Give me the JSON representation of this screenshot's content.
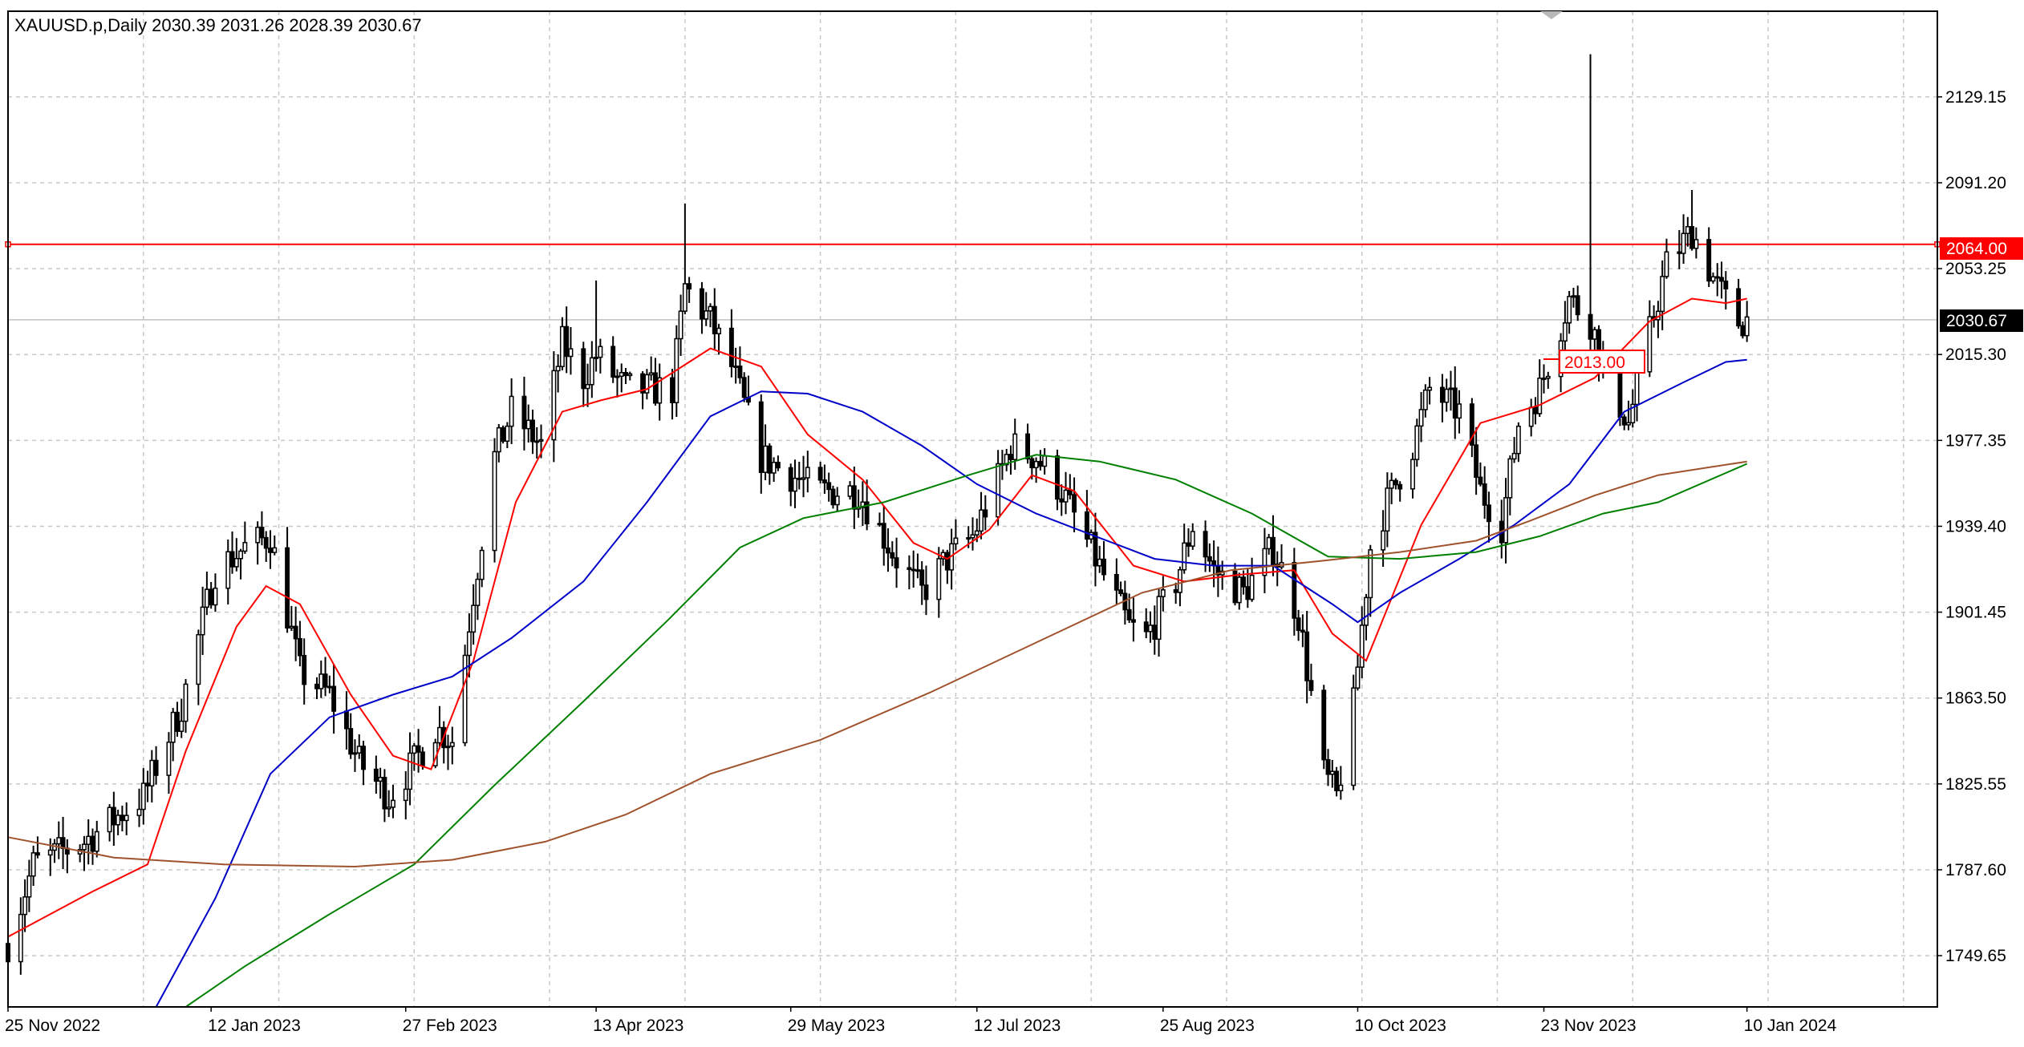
{
  "chart_data": {
    "type": "candlestick",
    "title": "XAUUSD.p,Daily  2030.39 2031.26 2028.39 2030.67",
    "symbol": "XAUUSD.p",
    "timeframe": "Daily",
    "ohlc_last": {
      "open": 2030.39,
      "high": 2031.26,
      "low": 2028.39,
      "close": 2030.67
    },
    "x_ticks": [
      "25 Nov 2022",
      "12 Jan 2023",
      "27 Feb 2023",
      "13 Apr 2023",
      "29 May 2023",
      "12 Jul 2023",
      "25 Aug 2023",
      "10 Oct 2023",
      "23 Nov 2023",
      "10 Jan 2024"
    ],
    "y_ticks": [
      1749.65,
      1787.6,
      1825.55,
      1863.5,
      1901.45,
      1939.4,
      1977.35,
      2015.3,
      2053.25,
      2091.2,
      2129.15
    ],
    "y_tick_labels": [
      "1749.65",
      "1787.60",
      "1825.55",
      "1863.50",
      "1901.45",
      "1939.40",
      "1977.35",
      "2015.30",
      "2053.25",
      "2091.20",
      "2129.15"
    ],
    "ylim": [
      1727,
      2167
    ],
    "x_range_days": [
      "2022-11-25",
      "2024-02-24"
    ],
    "grid": true,
    "price_labels": {
      "current": "2030.67",
      "level": "2064.00",
      "ma_value": "2013.00"
    },
    "horizontal_levels": [
      {
        "label": "2064.00",
        "value": 2064.0,
        "color": "#ff0000"
      },
      {
        "label": "2030.67",
        "value": 2030.67,
        "color": "#c0c0c0"
      }
    ],
    "colors": {
      "candle": "#000000",
      "ma_red": "#ff0000",
      "ma_blue": "#0000c8",
      "ma_green": "#008000",
      "ma_brown": "#a0522d",
      "level": "#ff0000",
      "current_price_bg": "#000000",
      "grid": "#c8c8c8"
    },
    "candle_anchors": [
      [
        "2022-11-25",
        1755
      ],
      [
        "2022-12-01",
        1790
      ],
      [
        "2022-12-13",
        1800
      ],
      [
        "2022-12-27",
        1820
      ],
      [
        "2023-01-05",
        1860
      ],
      [
        "2023-01-13",
        1920
      ],
      [
        "2023-01-20",
        1930
      ],
      [
        "2023-01-26",
        1935
      ],
      [
        "2023-02-02",
        1875
      ],
      [
        "2023-02-09",
        1865
      ],
      [
        "2023-02-16",
        1835
      ],
      [
        "2023-02-23",
        1820
      ],
      [
        "2023-03-01",
        1835
      ],
      [
        "2023-03-06",
        1850
      ],
      [
        "2023-03-10",
        1845
      ],
      [
        "2023-03-15",
        1910
      ],
      [
        "2023-03-20",
        1970
      ],
      [
        "2023-03-24",
        1990
      ],
      [
        "2023-03-31",
        1975
      ],
      [
        "2023-04-05",
        2020
      ],
      [
        "2023-04-10",
        2005
      ],
      [
        "2023-04-13",
        2015
      ],
      [
        "2023-04-20",
        2000
      ],
      [
        "2023-05-01",
        2000
      ],
      [
        "2023-05-04",
        2045
      ],
      [
        "2023-05-10",
        2030
      ],
      [
        "2023-05-15",
        2010
      ],
      [
        "2023-05-22",
        1970
      ],
      [
        "2023-05-31",
        1960
      ],
      [
        "2023-06-05",
        1955
      ],
      [
        "2023-06-14",
        1955
      ],
      [
        "2023-06-23",
        1925
      ],
      [
        "2023-06-29",
        1910
      ],
      [
        "2023-07-05",
        1925
      ],
      [
        "2023-07-11",
        1935
      ],
      [
        "2023-07-17",
        1960
      ],
      [
        "2023-07-20",
        1975
      ],
      [
        "2023-07-26",
        1970
      ],
      [
        "2023-08-01",
        1955
      ],
      [
        "2023-08-09",
        1925
      ],
      [
        "2023-08-17",
        1895
      ],
      [
        "2023-08-21",
        1890
      ],
      [
        "2023-08-28",
        1915
      ],
      [
        "2023-09-01",
        1940
      ],
      [
        "2023-09-06",
        1920
      ],
      [
        "2023-09-13",
        1910
      ],
      [
        "2023-09-20",
        1930
      ],
      [
        "2023-09-26",
        1900
      ],
      [
        "2023-10-02",
        1830
      ],
      [
        "2023-10-05",
        1820
      ],
      [
        "2023-10-09",
        1860
      ],
      [
        "2023-10-13",
        1930
      ],
      [
        "2023-10-17",
        1950
      ],
      [
        "2023-10-23",
        1975
      ],
      [
        "2023-10-27",
        2000
      ],
      [
        "2023-11-03",
        1990
      ],
      [
        "2023-11-08",
        1955
      ],
      [
        "2023-11-13",
        1940
      ],
      [
        "2023-11-17",
        1985
      ],
      [
        "2023-11-22",
        2000
      ],
      [
        "2023-11-29",
        2040
      ],
      [
        "2023-12-04",
        2030
      ],
      [
        "2023-12-08",
        2005
      ],
      [
        "2023-12-13",
        1985
      ],
      [
        "2023-12-18",
        2025
      ],
      [
        "2023-12-22",
        2055
      ],
      [
        "2023-12-28",
        2070
      ],
      [
        "2024-01-03",
        2045
      ],
      [
        "2024-01-08",
        2030
      ],
      [
        "2024-01-10",
        2030.67
      ]
    ],
    "spikes": [
      {
        "date": "2023-04-13",
        "high": 2048
      },
      {
        "date": "2023-05-04",
        "high": 2082
      },
      {
        "date": "2023-12-04",
        "high": 2148
      },
      {
        "date": "2023-12-28",
        "high": 2088
      }
    ],
    "series": [
      {
        "color": "#ff0000",
        "points": [
          [
            "2022-11-25",
            1758
          ],
          [
            "2022-12-15",
            1778
          ],
          [
            "2022-12-28",
            1790
          ],
          [
            "2023-01-06",
            1840
          ],
          [
            "2023-01-18",
            1895
          ],
          [
            "2023-01-25",
            1913
          ],
          [
            "2023-02-02",
            1905
          ],
          [
            "2023-02-14",
            1865
          ],
          [
            "2023-02-24",
            1838
          ],
          [
            "2023-03-05",
            1832
          ],
          [
            "2023-03-15",
            1880
          ],
          [
            "2023-03-25",
            1950
          ],
          [
            "2023-04-05",
            1990
          ],
          [
            "2023-04-14",
            1995
          ],
          [
            "2023-04-25",
            2000
          ],
          [
            "2023-05-10",
            2018
          ],
          [
            "2023-05-22",
            2010
          ],
          [
            "2023-06-02",
            1980
          ],
          [
            "2023-06-15",
            1960
          ],
          [
            "2023-06-27",
            1932
          ],
          [
            "2023-07-05",
            1925
          ],
          [
            "2023-07-15",
            1938
          ],
          [
            "2023-07-25",
            1962
          ],
          [
            "2023-08-04",
            1955
          ],
          [
            "2023-08-18",
            1922
          ],
          [
            "2023-08-30",
            1915
          ],
          [
            "2023-09-12",
            1918
          ],
          [
            "2023-09-25",
            1920
          ],
          [
            "2023-10-04",
            1892
          ],
          [
            "2023-10-12",
            1880
          ],
          [
            "2023-10-25",
            1940
          ],
          [
            "2023-11-08",
            1985
          ],
          [
            "2023-11-22",
            1993
          ],
          [
            "2023-12-05",
            2005
          ],
          [
            "2023-12-18",
            2030
          ],
          [
            "2023-12-28",
            2040
          ],
          [
            "2024-01-05",
            2038
          ],
          [
            "2024-01-10",
            2040
          ]
        ]
      },
      {
        "color": "#0000c8",
        "points": [
          [
            "2022-12-30",
            1727
          ],
          [
            "2023-01-13",
            1775
          ],
          [
            "2023-01-26",
            1830
          ],
          [
            "2023-02-09",
            1855
          ],
          [
            "2023-02-24",
            1865
          ],
          [
            "2023-03-10",
            1873
          ],
          [
            "2023-03-24",
            1890
          ],
          [
            "2023-04-10",
            1915
          ],
          [
            "2023-04-25",
            1950
          ],
          [
            "2023-05-10",
            1988
          ],
          [
            "2023-05-22",
            1999
          ],
          [
            "2023-06-02",
            1998
          ],
          [
            "2023-06-15",
            1990
          ],
          [
            "2023-06-29",
            1975
          ],
          [
            "2023-07-12",
            1958
          ],
          [
            "2023-07-26",
            1945
          ],
          [
            "2023-08-09",
            1935
          ],
          [
            "2023-08-23",
            1925
          ],
          [
            "2023-09-06",
            1922
          ],
          [
            "2023-09-20",
            1922
          ],
          [
            "2023-10-04",
            1905
          ],
          [
            "2023-10-10",
            1897
          ],
          [
            "2023-10-20",
            1910
          ],
          [
            "2023-11-03",
            1925
          ],
          [
            "2023-11-16",
            1940
          ],
          [
            "2023-11-29",
            1958
          ],
          [
            "2023-12-12",
            1990
          ],
          [
            "2023-12-26",
            2003
          ],
          [
            "2024-01-05",
            2012
          ],
          [
            "2024-01-10",
            2013
          ]
        ]
      },
      {
        "color": "#008000",
        "points": [
          [
            "2023-01-06",
            1727
          ],
          [
            "2023-01-20",
            1745
          ],
          [
            "2023-02-09",
            1768
          ],
          [
            "2023-03-01",
            1790
          ],
          [
            "2023-03-20",
            1825
          ],
          [
            "2023-04-10",
            1862
          ],
          [
            "2023-04-30",
            1898
          ],
          [
            "2023-05-17",
            1930
          ],
          [
            "2023-06-01",
            1943
          ],
          [
            "2023-06-20",
            1950
          ],
          [
            "2023-07-10",
            1962
          ],
          [
            "2023-07-26",
            1971
          ],
          [
            "2023-08-10",
            1968
          ],
          [
            "2023-08-28",
            1960
          ],
          [
            "2023-09-15",
            1945
          ],
          [
            "2023-10-03",
            1926
          ],
          [
            "2023-10-20",
            1925
          ],
          [
            "2023-11-07",
            1928
          ],
          [
            "2023-11-22",
            1935
          ],
          [
            "2023-12-07",
            1945
          ],
          [
            "2023-12-20",
            1950
          ],
          [
            "2024-01-10",
            1967
          ]
        ]
      },
      {
        "color": "#a0522d",
        "points": [
          [
            "2022-11-25",
            1802
          ],
          [
            "2022-12-20",
            1793
          ],
          [
            "2023-01-15",
            1790
          ],
          [
            "2023-02-15",
            1789
          ],
          [
            "2023-03-10",
            1792
          ],
          [
            "2023-04-01",
            1800
          ],
          [
            "2023-04-20",
            1812
          ],
          [
            "2023-05-10",
            1830
          ],
          [
            "2023-06-05",
            1845
          ],
          [
            "2023-07-01",
            1866
          ],
          [
            "2023-07-26",
            1888
          ],
          [
            "2023-08-20",
            1910
          ],
          [
            "2023-09-10",
            1920
          ],
          [
            "2023-10-01",
            1924
          ],
          [
            "2023-10-20",
            1928
          ],
          [
            "2023-11-07",
            1933
          ],
          [
            "2023-11-20",
            1942
          ],
          [
            "2023-12-05",
            1953
          ],
          [
            "2023-12-20",
            1962
          ],
          [
            "2024-01-10",
            1968
          ]
        ]
      }
    ]
  }
}
